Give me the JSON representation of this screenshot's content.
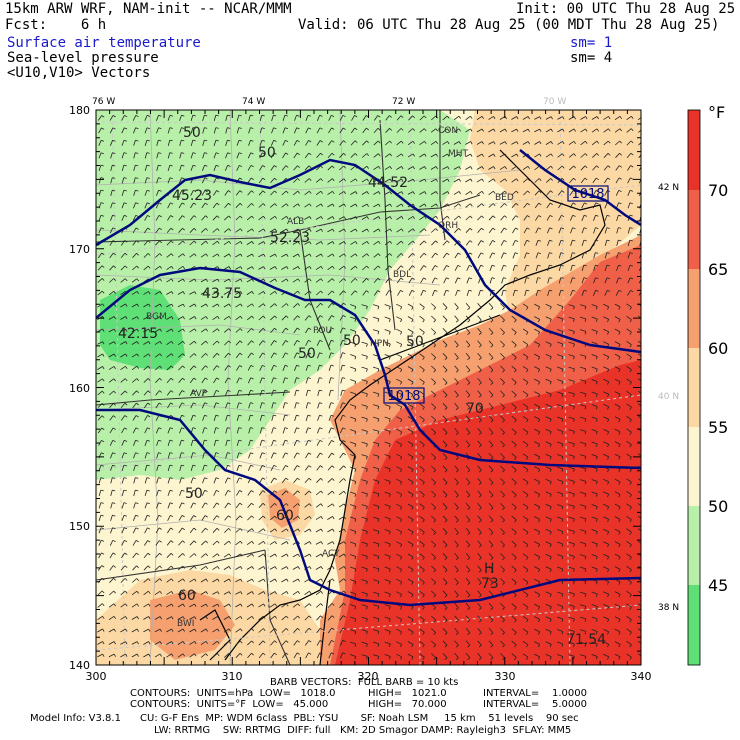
{
  "header": {
    "title": "15km ARW WRF, NAM-init -- NCAR/MMM",
    "init": "Init: 00 UTC Thu 28 Aug 25",
    "fcst": "Fcst:    6 h",
    "valid": "Valid: 06 UTC Thu 28 Aug 25 (00 MDT Thu 28 Aug 25)",
    "field1": "Surface air temperature",
    "sm1": "sm= 1",
    "field2": "Sea-level pressure",
    "sm2": "sm= 4",
    "field3": "<U10,V10> Vectors"
  },
  "map": {
    "x_ticks": [
      "300",
      "310",
      "320",
      "330",
      "340"
    ],
    "y_ticks": [
      "180",
      "170",
      "160",
      "150",
      "140"
    ],
    "lon_labels": [
      "76 W",
      "74 W",
      "72 W",
      "70 W"
    ],
    "lat_labels": [
      "42 N",
      "40 N",
      "38 N"
    ],
    "colors": {
      "t45": "#5fe076",
      "t45_50": "#b9f0a9",
      "t50_55": "#fdf5cf",
      "t55_60": "#fcd9a4",
      "t60_65": "#f6a070",
      "t65_70": "#f06048",
      "t70": "#e93328",
      "isobar": "#000a7e",
      "county": "#b0b0b0"
    },
    "temp_labels": [
      "50",
      "50",
      "45.23",
      "44.52",
      "52.23",
      "43.75",
      "42.15",
      "50",
      "50",
      "50",
      "60",
      "70",
      "50",
      "60",
      "73",
      "71.54"
    ],
    "pressure_labels": [
      "1018",
      "1018"
    ],
    "station_labels": [
      "CON",
      "MHT",
      "BED",
      "ALB",
      "ORH",
      "BDL",
      "BGM",
      "POU",
      "HPN",
      "AVP",
      "ACY",
      "BWI"
    ],
    "high_symbol": "H"
  },
  "colorbar": {
    "unit": "°F",
    "labels": [
      "70",
      "65",
      "60",
      "55",
      "50",
      "45"
    ]
  },
  "footer": {
    "barb": "BARB VECTORS:  FULL BARB = 10 kts",
    "c1_contours": "CONTOURS:  UNITS=hPa  LOW=   1018.0",
    "c1_high": "HIGH=   1021.0",
    "c1_interval": "INTERVAL=    1.0000",
    "c2_contours": "CONTOURS:  UNITS=°F  LOW=   45.000",
    "c2_high": "HIGH=   70.000",
    "c2_interval": "INTERVAL=    5.0000",
    "model1": "Model Info: V3.8.1      CU: G-F Ens  MP: WDM 6class  PBL: YSU       SF: Noah LSM     15 km    51 levels    90 sec",
    "model2": "LW: RRTMG    SW: RRTMG  DIFF: full   KM: 2D Smagor DAMP: Rayleigh3  SFLAY: MM5"
  }
}
